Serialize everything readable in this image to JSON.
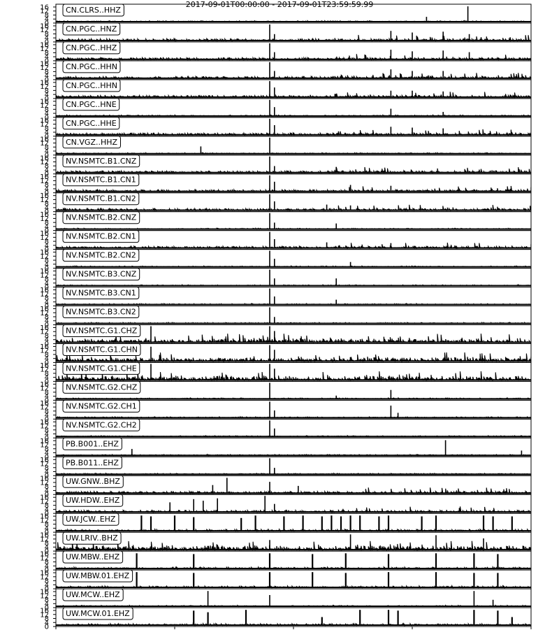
{
  "figure": {
    "title": "2017-09-01T00:00:00 - 2017-09-01T23:59:59.99",
    "colors": {
      "trace": "#000000",
      "frame": "#000000",
      "label_box": "#ffffff"
    }
  },
  "chart_data": {
    "type": "line",
    "description_of_axes": "stacked seismograms, shared time axis",
    "yticks": [
      "16",
      "12",
      "8",
      "4",
      "0"
    ],
    "ylim": [
      0,
      20
    ],
    "event_markers": [
      0.45,
      0.46
    ],
    "series": [
      {
        "name": "CN.CLRS..HHZ",
        "activity": "low",
        "spikes": [
          [
            0.867,
            0.95
          ],
          [
            0.78,
            0.3
          ]
        ]
      },
      {
        "name": "CN.PGC..HNZ",
        "activity": "medium",
        "spikes": [
          [
            0.45,
            1.0
          ],
          [
            0.46,
            0.4
          ],
          [
            0.705,
            0.6
          ],
          [
            0.75,
            0.5
          ],
          [
            0.815,
            0.55
          ],
          [
            0.87,
            0.4
          ]
        ]
      },
      {
        "name": "CN.PGC..HHZ",
        "activity": "medium",
        "spikes": [
          [
            0.45,
            1.0
          ],
          [
            0.46,
            0.45
          ],
          [
            0.705,
            0.6
          ],
          [
            0.75,
            0.5
          ],
          [
            0.815,
            0.55
          ],
          [
            0.87,
            0.45
          ]
        ]
      },
      {
        "name": "CN.PGC..HHN",
        "activity": "medium",
        "spikes": [
          [
            0.45,
            1.0
          ],
          [
            0.46,
            0.45
          ],
          [
            0.705,
            0.55
          ],
          [
            0.75,
            0.45
          ],
          [
            0.815,
            0.45
          ]
        ]
      },
      {
        "name": "CN.PGC..HHN",
        "activity": "medium",
        "spikes": [
          [
            0.45,
            1.0
          ],
          [
            0.46,
            0.6
          ],
          [
            0.705,
            0.4
          ],
          [
            0.75,
            0.4
          ],
          [
            0.815,
            0.35
          ]
        ]
      },
      {
        "name": "CN.PGC..HNE",
        "activity": "low",
        "spikes": [
          [
            0.45,
            1.0
          ],
          [
            0.46,
            0.55
          ],
          [
            0.705,
            0.45
          ],
          [
            0.815,
            0.25
          ]
        ]
      },
      {
        "name": "CN.PGC..HHE",
        "activity": "medium",
        "spikes": [
          [
            0.45,
            1.0
          ],
          [
            0.46,
            0.6
          ],
          [
            0.705,
            0.5
          ],
          [
            0.75,
            0.45
          ],
          [
            0.815,
            0.4
          ]
        ]
      },
      {
        "name": "CN.VGZ..HHZ",
        "activity": "low",
        "spikes": [
          [
            0.45,
            1.0
          ],
          [
            0.305,
            0.45
          ]
        ]
      },
      {
        "name": "NV.NSMTC.B1.CNZ",
        "activity": "medium",
        "spikes": [
          [
            0.45,
            1.0
          ],
          [
            0.46,
            0.4
          ],
          [
            0.59,
            0.35
          ]
        ]
      },
      {
        "name": "NV.NSMTC.B1.CN1",
        "activity": "medium",
        "spikes": [
          [
            0.45,
            1.0
          ],
          [
            0.46,
            0.6
          ],
          [
            0.62,
            0.4
          ],
          [
            0.705,
            0.35
          ]
        ]
      },
      {
        "name": "NV.NSMTC.B1.CN2",
        "activity": "medium",
        "spikes": [
          [
            0.45,
            1.0
          ],
          [
            0.46,
            0.55
          ],
          [
            0.57,
            0.35
          ],
          [
            0.62,
            0.3
          ]
        ]
      },
      {
        "name": "NV.NSMTC.B2.CNZ",
        "activity": "low",
        "spikes": [
          [
            0.45,
            1.0
          ],
          [
            0.46,
            0.4
          ],
          [
            0.59,
            0.35
          ]
        ]
      },
      {
        "name": "NV.NSMTC.B2.CN1",
        "activity": "medium",
        "spikes": [
          [
            0.45,
            1.0
          ],
          [
            0.46,
            0.55
          ],
          [
            0.57,
            0.35
          ],
          [
            0.705,
            0.3
          ]
        ]
      },
      {
        "name": "NV.NSMTC.B2.CN2",
        "activity": "low",
        "spikes": [
          [
            0.45,
            1.0
          ],
          [
            0.46,
            0.5
          ],
          [
            0.62,
            0.3
          ]
        ]
      },
      {
        "name": "NV.NSMTC.B3.CNZ",
        "activity": "low",
        "spikes": [
          [
            0.45,
            1.0
          ],
          [
            0.46,
            0.45
          ],
          [
            0.59,
            0.45
          ]
        ]
      },
      {
        "name": "NV.NSMTC.B3.CN1",
        "activity": "low",
        "spikes": [
          [
            0.45,
            1.0
          ],
          [
            0.46,
            0.5
          ],
          [
            0.59,
            0.3
          ]
        ]
      },
      {
        "name": "NV.NSMTC.B3.CN2",
        "activity": "low",
        "spikes": [
          [
            0.45,
            1.0
          ],
          [
            0.46,
            0.4
          ]
        ]
      },
      {
        "name": "NV.NSMTC.G1.CHZ",
        "activity": "high",
        "spikes": [
          [
            0.2,
            1.0
          ],
          [
            0.45,
            1.0
          ],
          [
            0.46,
            0.7
          ]
        ]
      },
      {
        "name": "NV.NSMTC.G1.CHN",
        "activity": "high",
        "spikes": [
          [
            0.2,
            0.9
          ],
          [
            0.45,
            1.0
          ],
          [
            0.46,
            0.7
          ]
        ]
      },
      {
        "name": "NV.NSMTC.G1.CHE",
        "activity": "high",
        "spikes": [
          [
            0.2,
            1.0
          ],
          [
            0.45,
            1.0
          ],
          [
            0.46,
            0.7
          ]
        ]
      },
      {
        "name": "NV.NSMTC.G2.CHZ",
        "activity": "low",
        "spikes": [
          [
            0.45,
            1.0
          ],
          [
            0.705,
            0.55
          ],
          [
            0.59,
            0.2
          ]
        ]
      },
      {
        "name": "NV.NSMTC.G2.CH1",
        "activity": "low",
        "spikes": [
          [
            0.45,
            1.0
          ],
          [
            0.46,
            0.45
          ],
          [
            0.705,
            0.75
          ],
          [
            0.72,
            0.3
          ]
        ]
      },
      {
        "name": "NV.NSMTC.G2.CH2",
        "activity": "low",
        "spikes": [
          [
            0.45,
            1.0
          ],
          [
            0.46,
            0.5
          ]
        ]
      },
      {
        "name": "PB.B001..EHZ",
        "activity": "low",
        "spikes": [
          [
            0.82,
            0.95
          ],
          [
            0.16,
            0.4
          ],
          [
            0.98,
            0.3
          ]
        ]
      },
      {
        "name": "PB.B011..EHZ",
        "activity": "low",
        "spikes": [
          [
            0.45,
            1.0
          ],
          [
            0.46,
            0.4
          ]
        ]
      },
      {
        "name": "UW.GNW..BHZ",
        "activity": "medium",
        "spikes": [
          [
            0.36,
            0.95
          ],
          [
            0.33,
            0.5
          ],
          [
            0.45,
            0.7
          ],
          [
            0.51,
            0.45
          ]
        ]
      },
      {
        "name": "UW.HDW..EHZ",
        "activity": "medium",
        "spikes": [
          [
            0.44,
            1.0
          ],
          [
            0.34,
            0.85
          ],
          [
            0.29,
            0.8
          ],
          [
            0.31,
            0.7
          ],
          [
            0.24,
            0.6
          ],
          [
            0.46,
            0.5
          ]
        ]
      },
      {
        "name": "UW.JCW..EHZ",
        "activity": "bursty",
        "spikes": [
          [
            0.18,
            0.95
          ],
          [
            0.2,
            0.9
          ],
          [
            0.25,
            0.95
          ],
          [
            0.29,
            0.85
          ],
          [
            0.39,
            0.8
          ],
          [
            0.42,
            0.95
          ],
          [
            0.48,
            0.9
          ],
          [
            0.52,
            0.95
          ],
          [
            0.56,
            0.9
          ],
          [
            0.58,
            0.95
          ],
          [
            0.6,
            0.9
          ],
          [
            0.62,
            0.95
          ],
          [
            0.64,
            0.95
          ],
          [
            0.68,
            0.9
          ],
          [
            0.7,
            0.95
          ],
          [
            0.77,
            0.9
          ],
          [
            0.8,
            0.95
          ],
          [
            0.9,
            0.95
          ],
          [
            0.92,
            0.9
          ],
          [
            0.96,
            0.9
          ]
        ]
      },
      {
        "name": "UW.LRIV..BHZ",
        "activity": "high",
        "spikes": [
          [
            0.62,
            0.95
          ],
          [
            0.8,
            0.9
          ],
          [
            0.45,
            0.6
          ],
          [
            0.9,
            0.7
          ]
        ]
      },
      {
        "name": "UW.MBW..EHZ",
        "activity": "bursty",
        "spikes": [
          [
            0.17,
            0.95
          ],
          [
            0.29,
            0.9
          ],
          [
            0.45,
            0.95
          ],
          [
            0.54,
            0.9
          ],
          [
            0.61,
            0.95
          ],
          [
            0.7,
            0.9
          ],
          [
            0.8,
            0.95
          ],
          [
            0.88,
            0.95
          ],
          [
            0.93,
            0.9
          ]
        ]
      },
      {
        "name": "UW.MBW.01.EHZ",
        "activity": "bursty",
        "spikes": [
          [
            0.17,
            0.95
          ],
          [
            0.29,
            0.9
          ],
          [
            0.45,
            0.95
          ],
          [
            0.54,
            0.95
          ],
          [
            0.61,
            0.9
          ],
          [
            0.7,
            0.95
          ],
          [
            0.8,
            0.95
          ],
          [
            0.88,
            0.9
          ],
          [
            0.93,
            0.9
          ]
        ]
      },
      {
        "name": "UW.MCW..EHZ",
        "activity": "low",
        "spikes": [
          [
            0.32,
            0.95
          ],
          [
            0.88,
            0.95
          ],
          [
            0.45,
            0.7
          ],
          [
            0.92,
            0.4
          ]
        ]
      },
      {
        "name": "UW.MCW.01.EHZ",
        "activity": "bursty",
        "spikes": [
          [
            0.29,
            0.9
          ],
          [
            0.4,
            0.95
          ],
          [
            0.32,
            0.8
          ],
          [
            0.56,
            0.5
          ],
          [
            0.64,
            0.95
          ],
          [
            0.7,
            0.95
          ],
          [
            0.72,
            0.9
          ],
          [
            0.88,
            0.95
          ],
          [
            0.93,
            0.9
          ],
          [
            0.96,
            0.5
          ]
        ]
      }
    ]
  }
}
